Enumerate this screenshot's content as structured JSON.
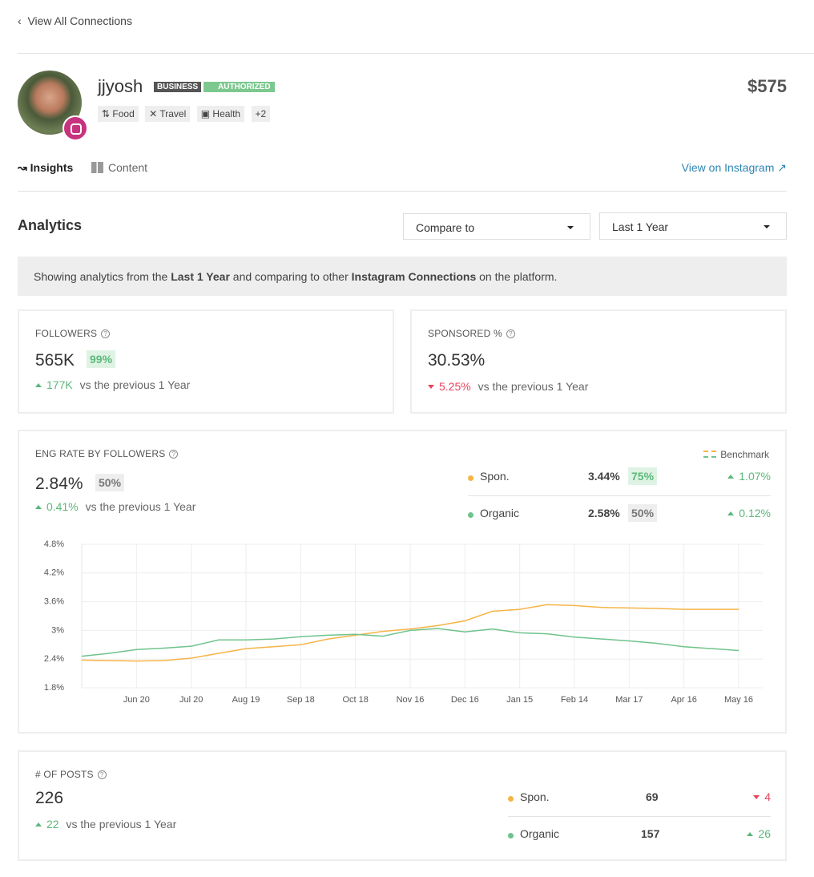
{
  "nav": {
    "back": "View All Connections"
  },
  "profile": {
    "name": "jjyosh",
    "badges": [
      "BUSINESS",
      "AUTHORIZED"
    ],
    "tags": [
      "Food",
      "Travel",
      "Health",
      "+2"
    ],
    "price": "$575"
  },
  "tabs": {
    "items": [
      "Insights",
      "Content"
    ],
    "link": "View on Instagram"
  },
  "analytics": {
    "title": "Analytics",
    "compare": "Compare to",
    "range": "Last 1 Year"
  },
  "banner": {
    "parts": [
      "Showing analytics from the ",
      "Last 1 Year",
      " and comparing to other ",
      "Instagram Connections",
      " on the platform."
    ]
  },
  "followers": {
    "label": "FOLLOWERS",
    "value": "565K",
    "rank": "99%",
    "change": "177K",
    "suffix": "vs the previous 1 Year"
  },
  "sponsored": {
    "label": "SPONSORED %",
    "value": "30.53%",
    "change": "5.25%",
    "suffix": "vs the previous 1 Year"
  },
  "eng": {
    "label": "ENG RATE BY FOLLOWERS",
    "value": "2.84%",
    "rank": "50%",
    "change": "0.41%",
    "suffix": "vs the previous 1 Year",
    "benchmark": "Benchmark",
    "rows": [
      {
        "value": "3.44%",
        "rank": "75%",
        "change": "1.07%"
      },
      {
        "value": "2.58%",
        "rank": "50%",
        "change": "0.12%"
      }
    ]
  },
  "chart_data": {
    "type": "line",
    "categories": [
      null,
      null,
      "Jun 20",
      null,
      "Jul 20",
      null,
      "Aug 19",
      null,
      "Sep 18",
      null,
      "Oct 18",
      null,
      "Nov 16",
      null,
      "Dec 16",
      null,
      "Jan 15",
      null,
      "Feb 14",
      null,
      "Mar 17",
      null,
      "Apr 16",
      null,
      "May 16"
    ],
    "series": [
      {
        "name": "Spon.",
        "color": "#f6b447",
        "values": [
          2.38,
          2.37,
          2.36,
          2.37,
          2.42,
          2.52,
          2.62,
          2.66,
          2.7,
          2.82,
          2.9,
          2.98,
          3.03,
          3.1,
          3.2,
          3.4,
          3.44,
          3.54,
          3.52,
          3.48,
          3.47,
          3.46,
          3.44,
          3.44,
          3.44
        ]
      },
      {
        "name": "Organic",
        "color": "#6fc38c",
        "values": [
          2.46,
          2.52,
          2.6,
          2.63,
          2.67,
          2.8,
          2.8,
          2.82,
          2.87,
          2.9,
          2.92,
          2.88,
          3.0,
          3.04,
          2.97,
          3.03,
          2.95,
          2.93,
          2.86,
          2.82,
          2.78,
          2.73,
          2.66,
          2.62,
          2.58
        ]
      }
    ],
    "ylim": [
      1.8,
      4.8
    ],
    "yticks": [
      {
        "value": 1.8,
        "label": "1.8%"
      },
      {
        "value": 2.4,
        "label": "2.4%"
      },
      {
        "value": 3,
        "label": "3%"
      },
      {
        "value": 3.6,
        "label": "3.6%"
      },
      {
        "value": 4.2,
        "label": "4.2%"
      },
      {
        "value": 4.8,
        "label": "4.8%"
      }
    ],
    "grid": true
  },
  "posts": {
    "label": "# OF POSTS",
    "value": "226",
    "change": "22",
    "suffix": "vs the previous 1 Year",
    "rows": [
      {
        "name": "Spon.",
        "value": "69",
        "change": "4"
      },
      {
        "name": "Organic",
        "value": "157",
        "change": "26"
      }
    ]
  }
}
